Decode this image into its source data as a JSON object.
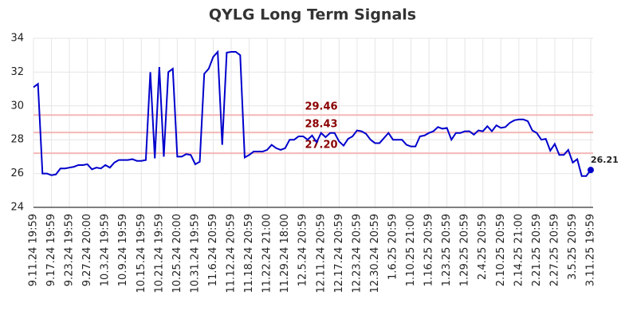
{
  "chart_data": {
    "type": "line",
    "title": "QYLG Long Term Signals",
    "categories": [
      "9.11.24 19:59",
      null,
      null,
      null,
      "9.17.24 19:59",
      null,
      null,
      null,
      "9.23.24 19:59",
      null,
      null,
      null,
      "9.27.24 20:00",
      null,
      null,
      null,
      "10.3.24 19:59",
      null,
      null,
      null,
      "10.9.24 19:59",
      null,
      null,
      null,
      "10.15.24 19:59",
      null,
      null,
      null,
      "10.21.24 19:59",
      null,
      null,
      null,
      "10.25.24 20:00",
      null,
      null,
      null,
      "10.31.24 19:59",
      null,
      null,
      null,
      "11.6.24 20:59",
      null,
      null,
      null,
      "11.12.24 20:59",
      null,
      null,
      null,
      "11.18.24 20:59",
      null,
      null,
      null,
      "11.22.24 21:00",
      null,
      null,
      null,
      "11.29.24 18:00",
      null,
      null,
      null,
      "12.5.24 20:59",
      null,
      null,
      null,
      "12.11.24 20:59",
      null,
      null,
      null,
      "12.17.24 20:59",
      null,
      null,
      null,
      "12.23.24 20:59",
      null,
      null,
      null,
      "12.30.24 20:59",
      null,
      null,
      null,
      "1.6.25 20:59",
      null,
      null,
      null,
      "1.10.25 21:00",
      null,
      null,
      null,
      "1.16.25 20:59",
      null,
      null,
      null,
      "1.23.25 20:59",
      null,
      null,
      null,
      "1.29.25 20:59",
      null,
      null,
      null,
      "2.4.25 20:59",
      null,
      null,
      null,
      "2.10.25 20:59",
      null,
      null,
      null,
      "2.14.25 21:00",
      null,
      null,
      null,
      "2.21.25 20:59",
      null,
      null,
      null,
      "2.27.25 20:59",
      null,
      null,
      null,
      "3.5.25 20:59",
      null,
      null,
      null,
      "3.11.25 19:59"
    ],
    "series": [
      {
        "color": "#0000cc",
        "values": [
          31.1,
          31.3,
          26.0,
          26.0,
          25.9,
          25.95,
          26.3,
          26.3,
          26.35,
          26.4,
          26.5,
          26.5,
          26.55,
          26.25,
          26.35,
          26.3,
          26.5,
          26.35,
          26.65,
          26.8,
          26.8,
          26.8,
          26.85,
          26.75,
          26.75,
          26.8,
          32.0,
          26.9,
          32.3,
          27.0,
          32.0,
          32.2,
          27.0,
          27.0,
          27.15,
          27.1,
          26.55,
          26.7,
          31.9,
          32.2,
          32.9,
          33.2,
          27.7,
          33.15,
          33.2,
          33.2,
          33.0,
          26.95,
          27.1,
          27.3,
          27.3,
          27.3,
          27.4,
          27.7,
          27.5,
          27.4,
          27.5,
          28.0,
          28.0,
          28.2,
          28.2,
          28.0,
          28.25,
          27.85,
          28.4,
          28.15,
          28.4,
          28.4,
          27.9,
          27.65,
          28.05,
          28.2,
          28.55,
          28.5,
          28.35,
          28.0,
          27.8,
          27.8,
          28.1,
          28.4,
          28.0,
          28.0,
          28.0,
          27.7,
          27.6,
          27.6,
          28.2,
          28.25,
          28.4,
          28.5,
          28.75,
          28.65,
          28.7,
          28.0,
          28.4,
          28.4,
          28.5,
          28.5,
          28.3,
          28.55,
          28.5,
          28.8,
          28.5,
          28.85,
          28.7,
          28.75,
          29.0,
          29.15,
          29.2,
          29.2,
          29.1,
          28.55,
          28.4,
          28.0,
          28.05,
          27.35,
          27.75,
          27.1,
          27.1,
          27.4,
          26.65,
          26.85,
          25.85,
          25.85,
          26.21
        ]
      }
    ],
    "levels": [
      29.46,
      28.43,
      {
        "value": 27.2,
        "label": "27.20"
      }
    ],
    "level_color": "#f5b7b7",
    "level_label_color": "#8b0000",
    "ylim": [
      24,
      34
    ],
    "yticks": [
      24,
      26,
      28,
      30,
      32,
      34
    ],
    "grid": true
  }
}
